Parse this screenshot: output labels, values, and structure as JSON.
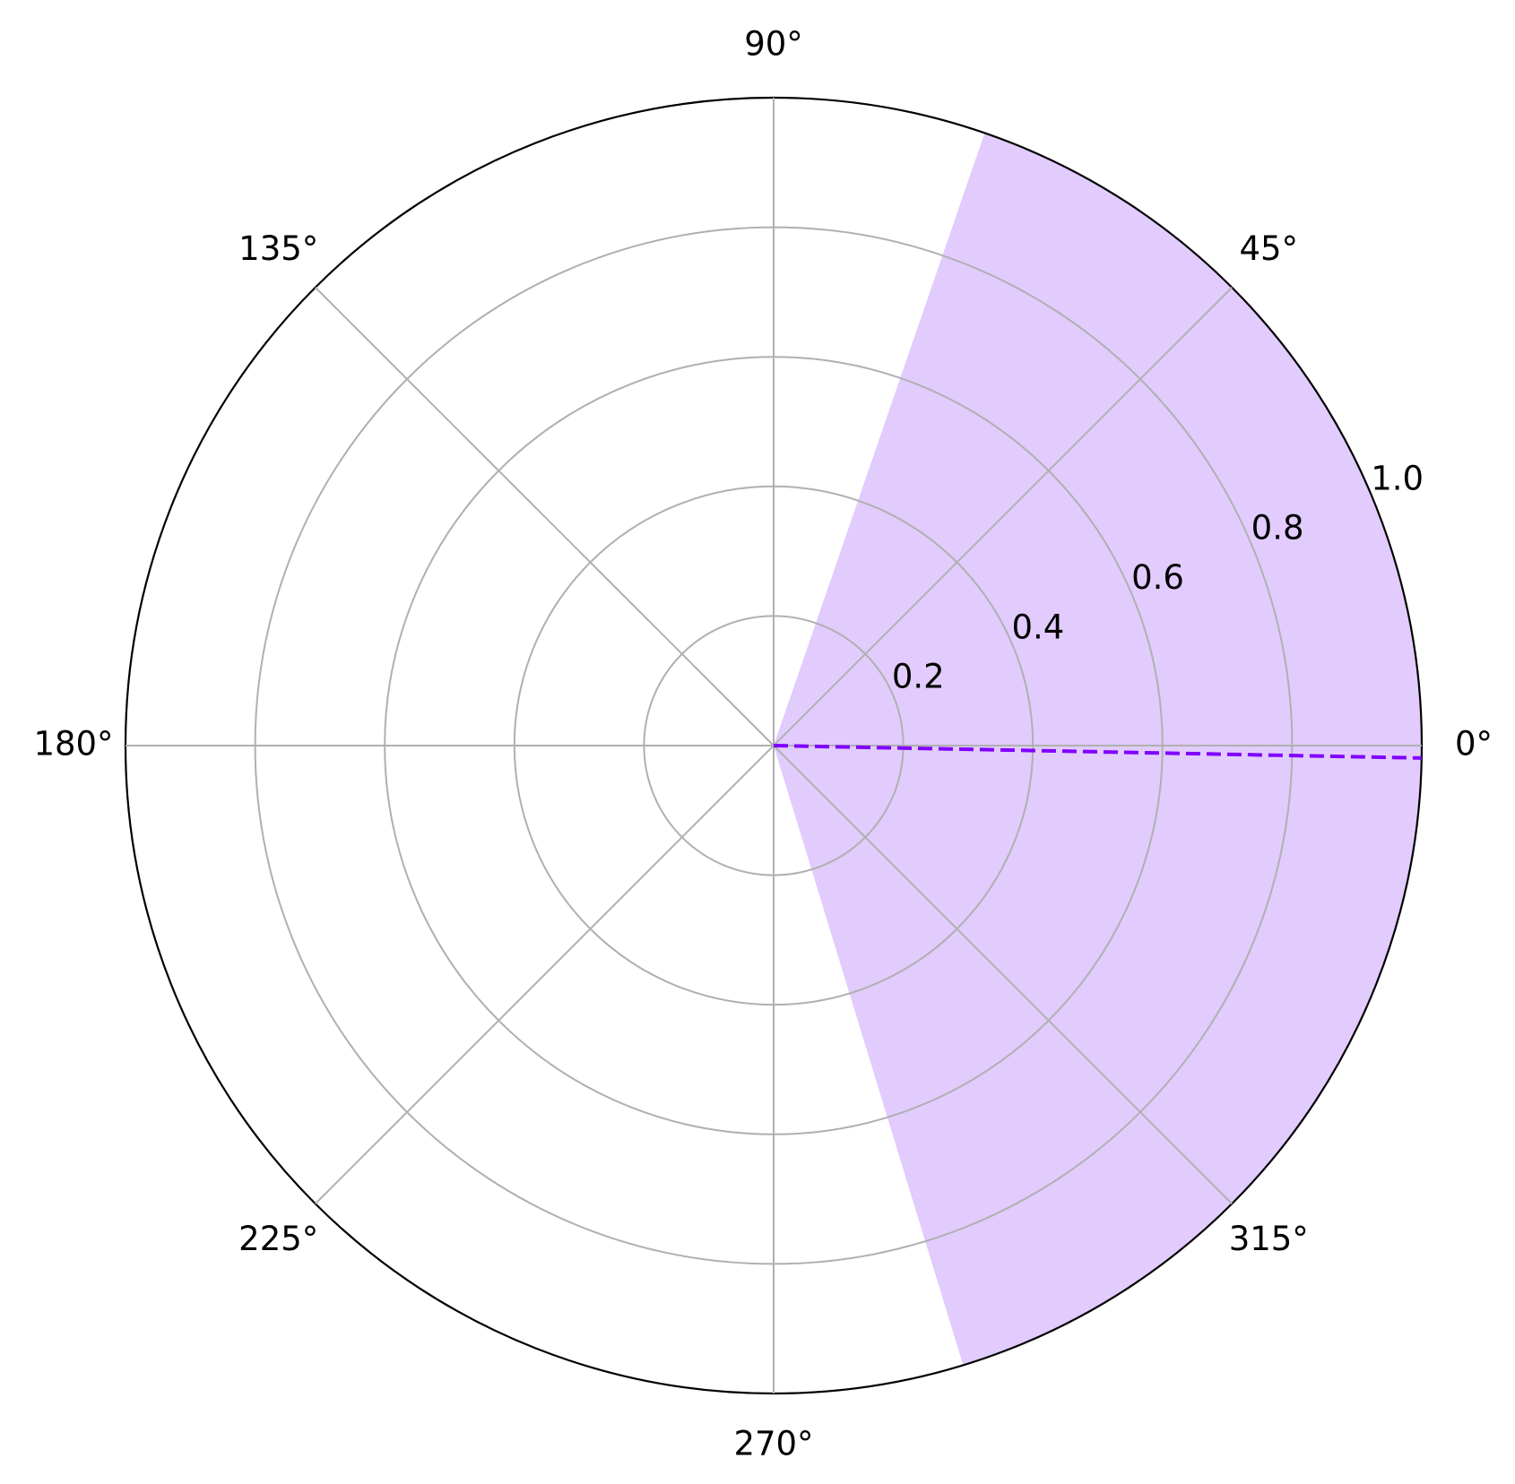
{
  "chart_data": {
    "type": "polar",
    "rlim": [
      0,
      1
    ],
    "rticks": [
      0.2,
      0.4,
      0.6,
      0.8,
      {
        "value": 1,
        "label": "1.0"
      }
    ],
    "thetaticks": [
      {
        "value": 0,
        "label": "0°"
      },
      {
        "value": 45,
        "label": "45°"
      },
      {
        "value": 90,
        "label": "90°"
      },
      {
        "value": 135,
        "label": "135°"
      },
      {
        "value": 180,
        "label": "180°"
      },
      {
        "value": 225,
        "label": "225°"
      },
      {
        "value": 270,
        "label": "270°"
      },
      {
        "value": 315,
        "label": "315°"
      }
    ],
    "grid": true,
    "sector": {
      "theta": [
        -73,
        71
      ],
      "r": [
        0,
        1
      ],
      "color": "#e1ccfd"
    },
    "line": {
      "theta": [
        -1.1,
        -1.1
      ],
      "r": [
        0,
        1
      ],
      "color": "#8000ff",
      "dashed": true
    }
  }
}
